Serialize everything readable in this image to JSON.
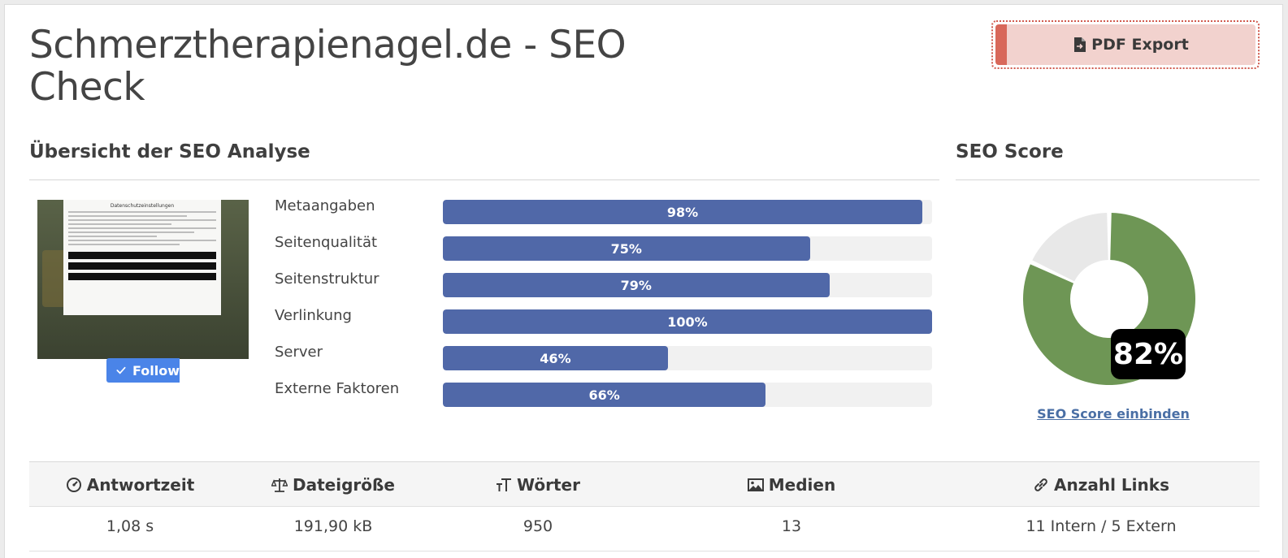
{
  "page_title": "Schmerztherapienagel.de - SEO Check",
  "pdf_export_label": "PDF Export",
  "overview": {
    "title": "Übersicht der SEO Analyse",
    "follow_label": "Follow",
    "metrics": [
      {
        "label": "Metaangaben",
        "value": 98,
        "display": "98%"
      },
      {
        "label": "Seitenqualität",
        "value": 75,
        "display": "75%"
      },
      {
        "label": "Seitenstruktur",
        "value": 79,
        "display": "79%"
      },
      {
        "label": "Verlinkung",
        "value": 100,
        "display": "100%"
      },
      {
        "label": "Server",
        "value": 46,
        "display": "46%"
      },
      {
        "label": "Externe Faktoren",
        "value": 66,
        "display": "66%"
      }
    ],
    "thumbnail_text": "Datenschutzeinstellungen"
  },
  "seo_score": {
    "title": "SEO Score",
    "value": 82,
    "display": "82%",
    "embed_link": "SEO Score einbinden",
    "colors": {
      "filled": "#6e9655",
      "empty": "#e8e8e8"
    }
  },
  "stats": [
    {
      "icon": "gauge-icon",
      "label": "Antwortzeit",
      "value": "1,08 s"
    },
    {
      "icon": "scale-icon",
      "label": "Dateigröße",
      "value": "191,90 kB"
    },
    {
      "icon": "text-size-icon",
      "label": "Wörter",
      "value": "950"
    },
    {
      "icon": "image-icon",
      "label": "Medien",
      "value": "13"
    },
    {
      "icon": "link-icon",
      "label": "Anzahl Links",
      "value": "11 Intern / 5 Extern"
    }
  ],
  "colors": {
    "bar": "#5068a8",
    "pdf_accent": "#d8685a",
    "link": "#4a6fa5"
  }
}
